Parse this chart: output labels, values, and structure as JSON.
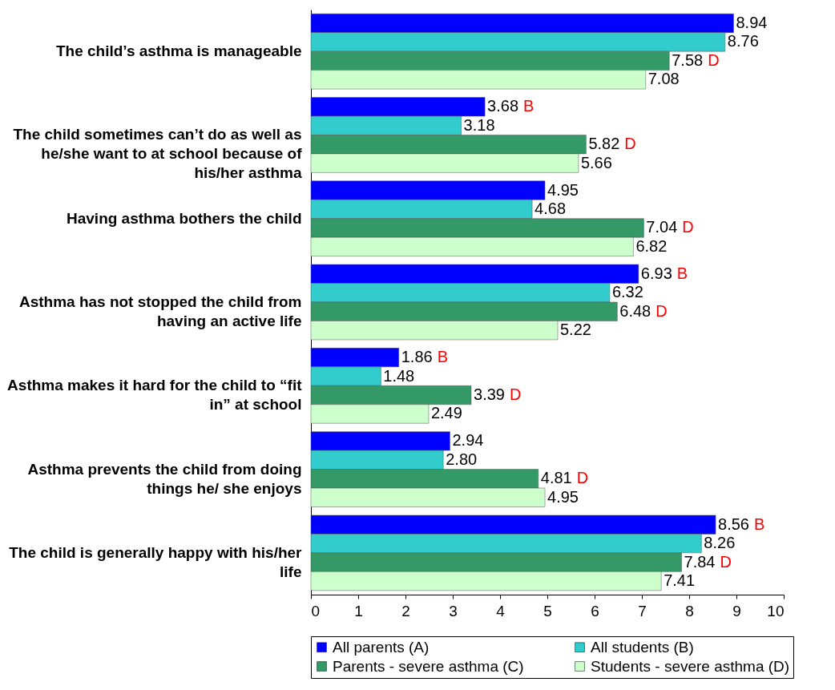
{
  "chart_data": {
    "type": "bar",
    "orientation": "horizontal",
    "categories": [
      "The child’s asthma is manageable",
      "The child sometimes can’t do as well as he/she want to at school  because of his/her asthma",
      "Having asthma bothers the child",
      "Asthma has not stopped the child from having an active life",
      "Asthma makes it hard for the child to “fit in” at school",
      "Asthma prevents the child from doing things he/ she enjoys",
      "The child is generally happy with his/her life"
    ],
    "series": [
      {
        "name": "All parents (A)",
        "color": "#0000ff",
        "values": [
          8.94,
          3.68,
          4.95,
          6.93,
          1.86,
          2.94,
          8.56
        ],
        "value_labels": [
          "8.94",
          "3.68 B",
          "4.95",
          "6.93 B",
          "1.86 B",
          "2.94",
          "8.56 B"
        ]
      },
      {
        "name": "All students (B)",
        "color": "#33cccc",
        "values": [
          8.76,
          3.18,
          4.68,
          6.32,
          1.48,
          2.8,
          8.26
        ],
        "value_labels": [
          "8.76",
          "3.18",
          "4.68",
          "6.32",
          "1.48",
          "2.80",
          "8.26"
        ]
      },
      {
        "name": "Parents - severe asthma (C)",
        "color": "#339966",
        "values": [
          7.58,
          5.82,
          7.04,
          6.48,
          3.39,
          4.81,
          7.84
        ],
        "value_labels": [
          "7.58 D",
          "5.82 D",
          "7.04 D",
          "6.48 D",
          "3.39 D",
          "4.81 D",
          "7.84 D"
        ]
      },
      {
        "name": "Students - severe asthma (D)",
        "color": "#ccffcc",
        "values": [
          7.08,
          5.66,
          6.82,
          5.22,
          2.49,
          4.95,
          7.41
        ],
        "value_labels": [
          "7.08",
          "5.66",
          "6.82",
          "5.22",
          "2.49",
          "4.95",
          "7.41"
        ]
      }
    ],
    "xlim": [
      0,
      10
    ],
    "xticks": [
      0,
      1,
      2,
      3,
      4,
      5,
      6,
      7,
      8,
      9,
      10
    ],
    "grid": false,
    "legend": "bottom"
  }
}
